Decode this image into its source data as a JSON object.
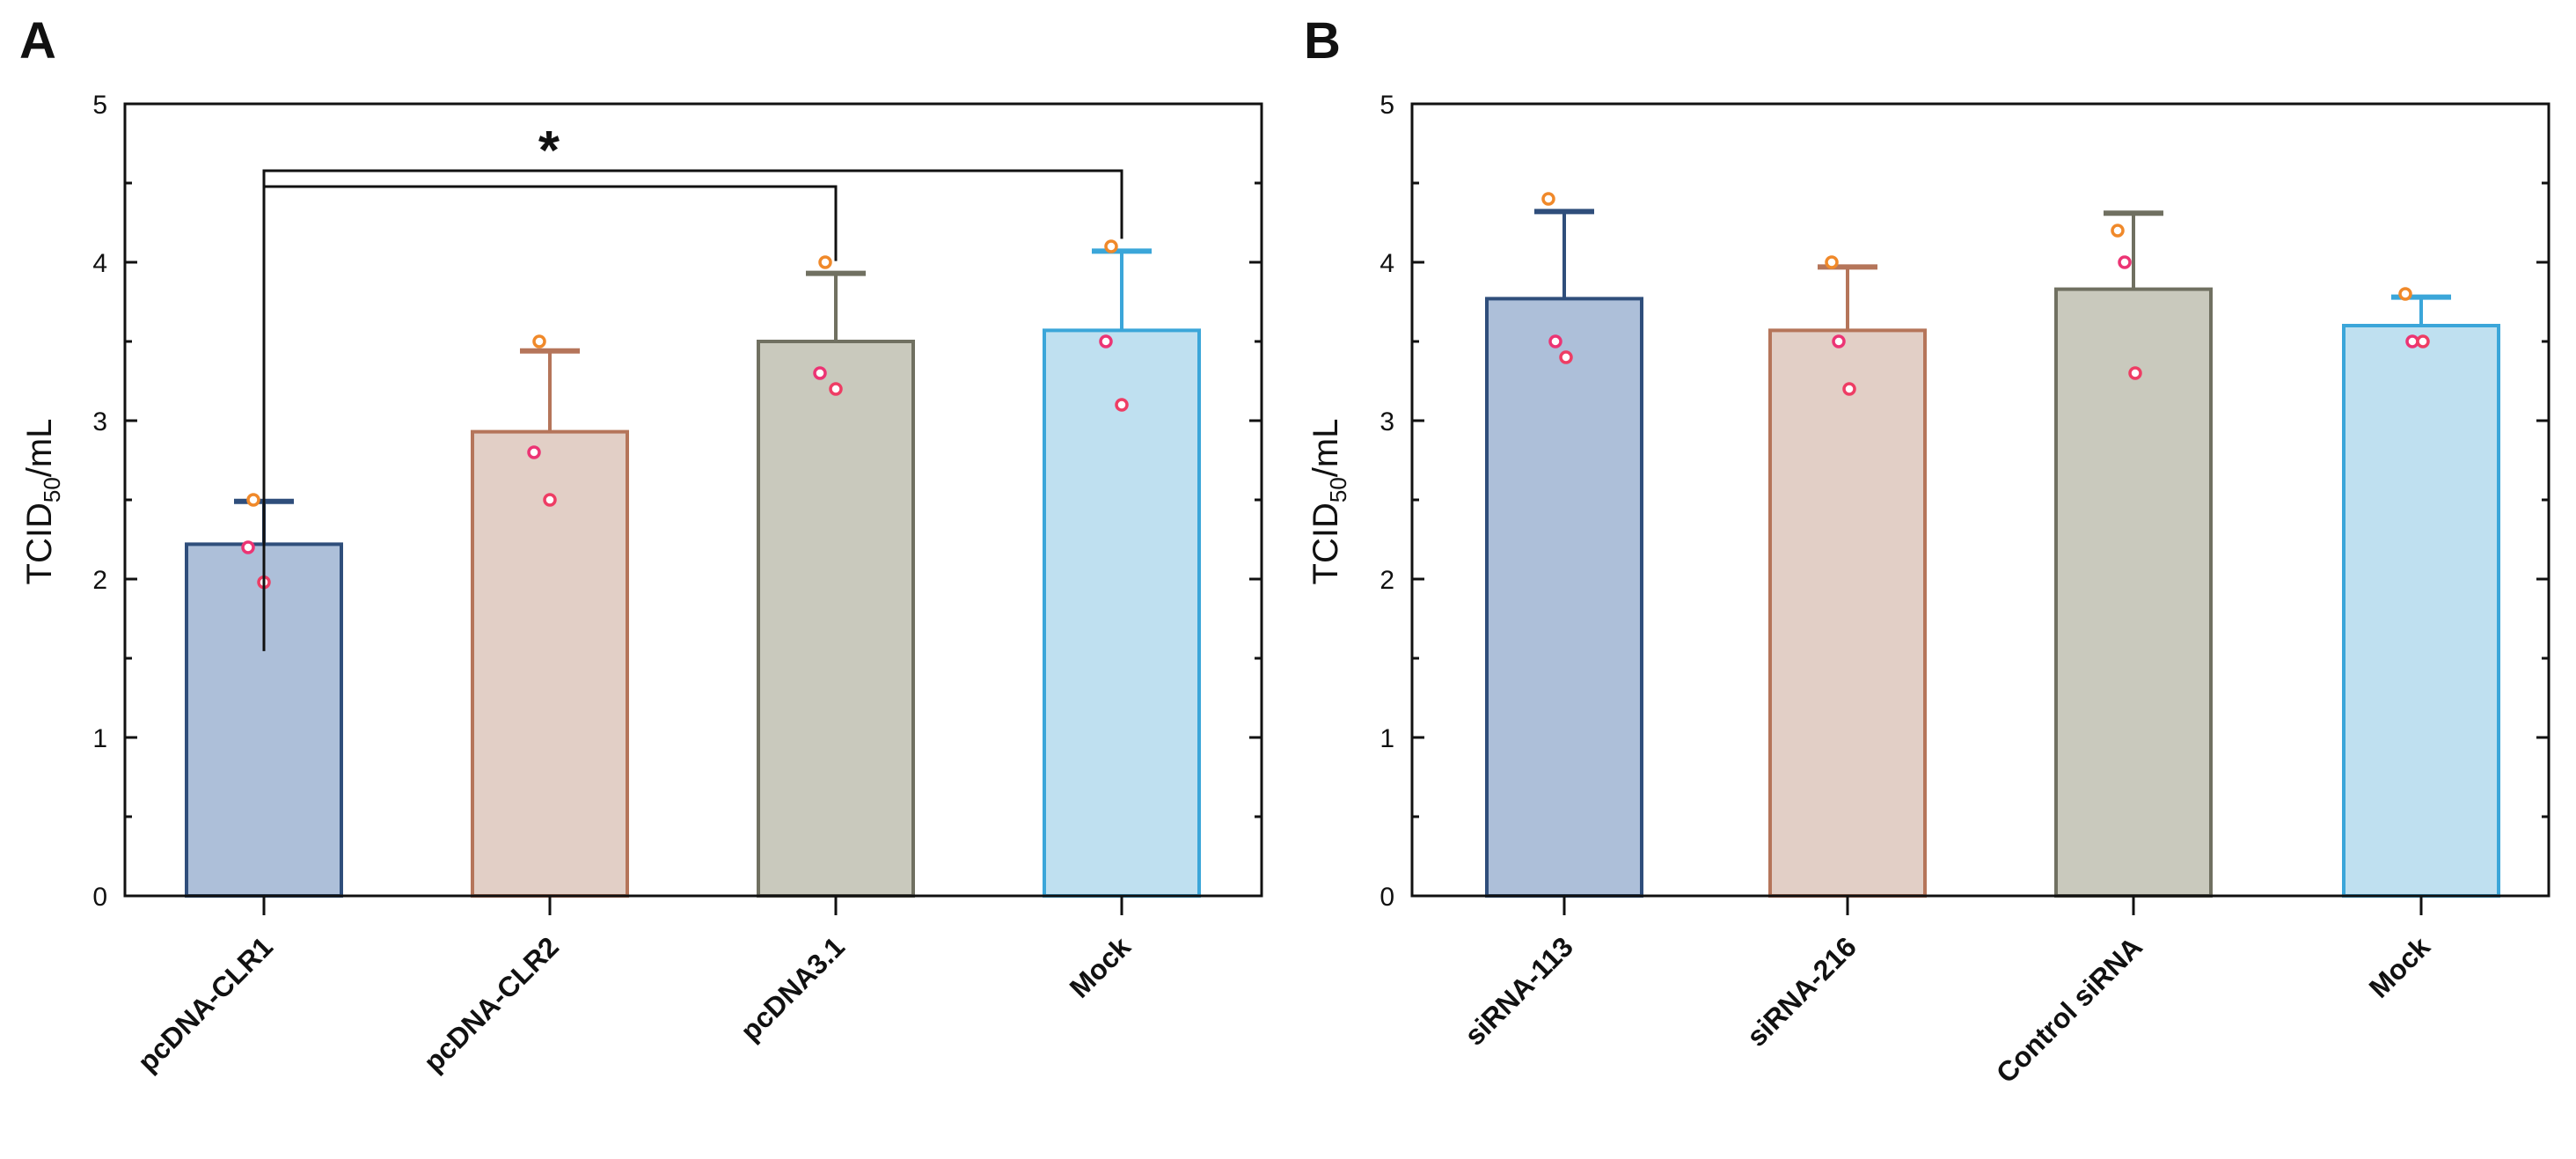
{
  "chart_data": [
    {
      "type": "bar",
      "panel_label": "A",
      "title": "",
      "xlabel": "",
      "ylabel": "TCID50/mL",
      "ylabel_main": "TCID",
      "ylabel_sub": "50",
      "ylabel_suffix": "/mL",
      "ylim": [
        0,
        5
      ],
      "yticks": [
        "0",
        "1",
        "2",
        "3",
        "4",
        "5"
      ],
      "grid": false,
      "categories": [
        "pcDNA-CLR1",
        "pcDNA-CLR2",
        "pcDNA3.1",
        "Mock"
      ],
      "values": [
        2.22,
        2.93,
        3.5,
        3.57
      ],
      "errors": [
        0.27,
        0.51,
        0.43,
        0.5
      ],
      "points": [
        [
          2.5,
          2.2,
          1.98
        ],
        [
          3.5,
          2.8,
          2.5
        ],
        [
          4.0,
          3.3,
          3.2
        ],
        [
          4.1,
          3.5,
          3.1
        ]
      ],
      "significance": {
        "label": "*",
        "from": "pcDNA-CLR1",
        "to": [
          "pcDNA3.1",
          "Mock"
        ]
      },
      "colors": {
        "fills": [
          "#adbfd9",
          "#e2cfc6",
          "#c9c9bd",
          "#bfe0f0"
        ],
        "strokes": [
          "#2f4e7b",
          "#b5755a",
          "#707061",
          "#3ba6d9"
        ],
        "point_colors": [
          "#f0892a",
          "#ec3474",
          "#ee3d64"
        ]
      }
    },
    {
      "type": "bar",
      "panel_label": "B",
      "title": "",
      "xlabel": "",
      "ylabel": "TCID50/mL",
      "ylabel_main": "TCID",
      "ylabel_sub": "50",
      "ylabel_suffix": "/mL",
      "ylim": [
        0,
        5
      ],
      "yticks": [
        "0",
        "1",
        "2",
        "3",
        "4",
        "5"
      ],
      "grid": false,
      "categories": [
        "siRNA-113",
        "siRNA-216",
        "Control siRNA",
        "Mock"
      ],
      "values": [
        3.77,
        3.57,
        3.83,
        3.6
      ],
      "errors": [
        0.55,
        0.4,
        0.48,
        0.18
      ],
      "points": [
        [
          4.4,
          3.5,
          3.4
        ],
        [
          4.0,
          3.5,
          3.2
        ],
        [
          4.2,
          4.0,
          3.3
        ],
        [
          3.8,
          3.5,
          3.5
        ]
      ],
      "significance": null,
      "colors": {
        "fills": [
          "#adbfd9",
          "#e2cfc6",
          "#c9c9bd",
          "#bfe0f0"
        ],
        "strokes": [
          "#2f4e7b",
          "#b5755a",
          "#707061",
          "#3ba6d9"
        ],
        "point_colors": [
          "#f0892a",
          "#ec3474",
          "#ee3d64"
        ]
      }
    }
  ]
}
